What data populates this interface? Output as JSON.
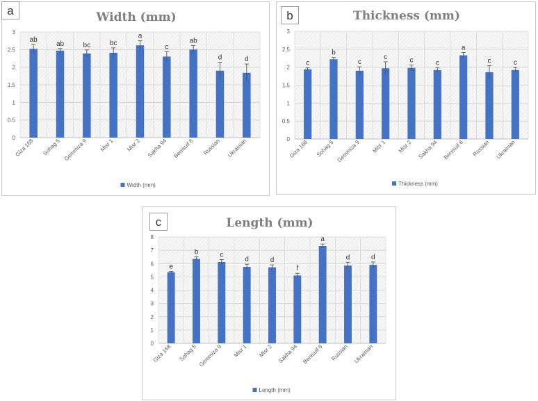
{
  "chart_data": [
    {
      "panel": "a",
      "type": "bar",
      "title": "Width (mm)",
      "categories": [
        "Giza 168",
        "Sohag 5",
        "Gemmiza 9",
        "Misr 1",
        "Misr 2",
        "Sakha 94",
        "Benisuif 6",
        "Russian",
        "Ukrainian"
      ],
      "series": [
        {
          "name": "Width (mm)",
          "values": [
            2.52,
            2.47,
            2.39,
            2.41,
            2.62,
            2.3,
            2.5,
            1.9,
            1.84
          ]
        }
      ],
      "errors": [
        0.12,
        0.06,
        0.1,
        0.14,
        0.13,
        0.14,
        0.12,
        0.24,
        0.25
      ],
      "labels": [
        "ab",
        "ab",
        "bc",
        "bc",
        "a",
        "c",
        "ab",
        "d",
        "d"
      ],
      "ylim": [
        0,
        3
      ],
      "yticks": [
        0,
        0.5,
        1,
        1.5,
        2,
        2.5,
        3
      ],
      "color": "#4472c4",
      "grid": true,
      "legend": "bottom"
    },
    {
      "panel": "b",
      "type": "bar",
      "title": "Thickness (mm)",
      "categories": [
        "Giza 168",
        "Sohag 5",
        "Gemmiza 9",
        "Misr 1",
        "Misr 2",
        "Sakha 94",
        "Benisuif 6",
        "Russian",
        "Ukrainian"
      ],
      "series": [
        {
          "name": "Thickness (mm)",
          "values": [
            1.94,
            2.22,
            1.9,
            1.97,
            1.98,
            1.92,
            2.33,
            1.86,
            1.92
          ]
        }
      ],
      "errors": [
        0.04,
        0.05,
        0.11,
        0.18,
        0.08,
        0.06,
        0.08,
        0.18,
        0.07
      ],
      "labels": [
        "c",
        "b",
        "c",
        "c",
        "c",
        "c",
        "a",
        "c",
        "c"
      ],
      "ylim": [
        0,
        3
      ],
      "yticks": [
        0,
        0.5,
        1,
        1.5,
        2,
        2.5,
        3
      ],
      "color": "#4472c4",
      "grid": true,
      "legend": "bottom"
    },
    {
      "panel": "c",
      "type": "bar",
      "title": "Length (mm)",
      "categories": [
        "Giza 168",
        "Sohag 5",
        "Gemmiza 9",
        "Misr 1",
        "Misr 2",
        "Sakha 94",
        "Benisuif 6",
        "Russian",
        "Ukrainian"
      ],
      "series": [
        {
          "name": "Length (mm)",
          "values": [
            5.35,
            6.35,
            6.12,
            5.75,
            5.72,
            5.1,
            7.32,
            5.85,
            5.9
          ]
        }
      ],
      "errors": [
        0.06,
        0.15,
        0.18,
        0.2,
        0.18,
        0.17,
        0.15,
        0.25,
        0.22
      ],
      "labels": [
        "e",
        "b",
        "c",
        "d",
        "d",
        "f",
        "a",
        "d",
        "d"
      ],
      "ylim": [
        0,
        8
      ],
      "yticks": [
        0,
        1,
        2,
        3,
        4,
        5,
        6,
        7,
        8
      ],
      "color": "#4472c4",
      "grid": true,
      "legend": "bottom"
    }
  ]
}
